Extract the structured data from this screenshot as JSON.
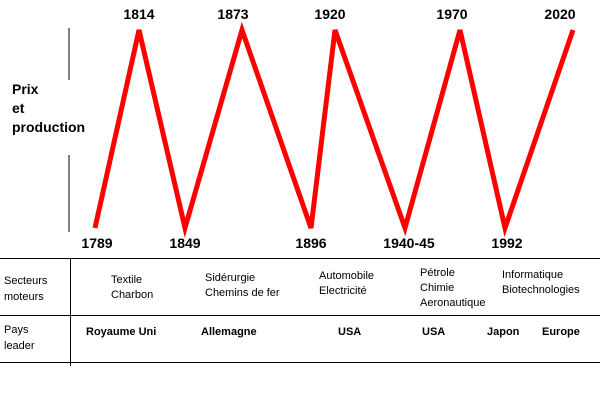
{
  "y_label": [
    "Prix",
    "et",
    "production"
  ],
  "chart_data": {
    "type": "line",
    "title": "",
    "ylabel": "Prix et production",
    "x": [
      "1789",
      "1814",
      "1849",
      "1873",
      "1896",
      "1920",
      "1940-45",
      "1970",
      "1992",
      "2020"
    ],
    "values": [
      0,
      1,
      0,
      1,
      0,
      1,
      0,
      1,
      0,
      1
    ],
    "kinds": [
      "trough",
      "peak",
      "trough",
      "peak",
      "trough",
      "peak",
      "trough",
      "peak",
      "trough",
      "peak"
    ],
    "ylim": [
      0,
      1
    ],
    "line_color": "#ff0000"
  },
  "table": {
    "rows": [
      {
        "header": [
          "Secteurs",
          "moteurs"
        ],
        "cells": [
          [
            "Textile",
            "Charbon"
          ],
          [
            "Sidérurgie",
            "Chemins de fer"
          ],
          [
            "Automobile",
            "Electricité"
          ],
          [
            "Pétrole",
            "Chimie",
            "Aeronautique"
          ],
          [
            "Informatique",
            "Biotechnologies"
          ]
        ]
      },
      {
        "header": [
          "Pays",
          "leader"
        ],
        "cells": [
          "Royaume Uni",
          "Allemagne",
          "USA",
          "USA",
          "Japon",
          "Europe"
        ]
      }
    ]
  }
}
